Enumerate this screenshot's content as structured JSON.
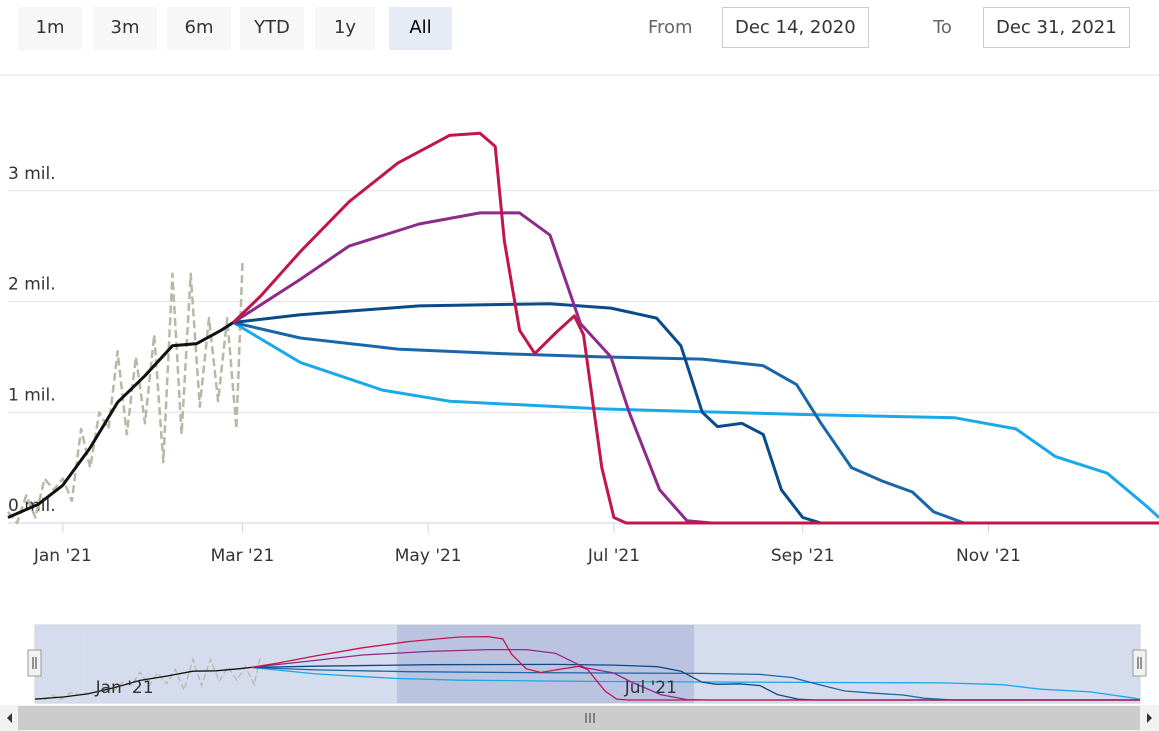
{
  "range_selector": {
    "buttons": [
      "1m",
      "3m",
      "6m",
      "YTD",
      "1y",
      "All"
    ],
    "selected": 5,
    "from_label": "From",
    "from": "Dec 14, 2020",
    "to_label": "To",
    "to": "Dec 31, 2021"
  },
  "chart_data": {
    "type": "line",
    "xlim": [
      "2020-12-14",
      "2021-12-27"
    ],
    "xticks": [
      {
        "value": "2021-01-01",
        "label": "Jan '21"
      },
      {
        "value": "2021-03-01",
        "label": "Mar '21"
      },
      {
        "value": "2021-05-01",
        "label": "May '21"
      },
      {
        "value": "2021-07-01",
        "label": "Jul '21"
      },
      {
        "value": "2021-09-01",
        "label": "Sep '21"
      },
      {
        "value": "2021-11-01",
        "label": "Nov '21"
      }
    ],
    "ylim": [
      0,
      4000000
    ],
    "yticks": [
      {
        "value": 0,
        "label": "0 mil."
      },
      {
        "value": 1000000,
        "label": "1 mil."
      },
      {
        "value": 2000000,
        "label": "2 mil."
      },
      {
        "value": 3000000,
        "label": "3 mil."
      }
    ],
    "grid": true,
    "series": [
      {
        "color": "#b9b8a4",
        "dashed": true,
        "x": [
          "2020-12-14",
          "2020-12-17",
          "2020-12-20",
          "2020-12-23",
          "2020-12-26",
          "2020-12-29",
          "2021-01-01",
          "2021-01-04",
          "2021-01-07",
          "2021-01-10",
          "2021-01-13",
          "2021-01-16",
          "2021-01-19",
          "2021-01-22",
          "2021-01-25",
          "2021-01-28",
          "2021-01-31",
          "2021-02-03",
          "2021-02-06",
          "2021-02-09",
          "2021-02-12",
          "2021-02-15",
          "2021-02-18",
          "2021-02-21",
          "2021-02-24",
          "2021-02-27",
          "2021-03-01"
        ],
        "values": [
          100000,
          0,
          250000,
          50000,
          400000,
          300000,
          400000,
          200000,
          850000,
          500000,
          1000000,
          850000,
          1550000,
          800000,
          1500000,
          900000,
          1700000,
          550000,
          2250000,
          800000,
          2250000,
          1050000,
          1850000,
          1100000,
          1850000,
          850000,
          2350000
        ]
      },
      {
        "color": "#111111",
        "x": [
          "2020-12-14",
          "2020-12-24",
          "2021-01-01",
          "2021-01-10",
          "2021-01-19",
          "2021-01-28",
          "2021-02-06",
          "2021-02-14",
          "2021-02-22",
          "2021-02-26"
        ],
        "values": [
          50000,
          170000,
          340000,
          680000,
          1090000,
          1330000,
          1600000,
          1620000,
          1740000,
          1810000
        ]
      },
      {
        "color": "#19a9e8",
        "x": [
          "2021-02-26",
          "2021-03-20",
          "2021-04-16",
          "2021-05-08",
          "2021-06-27",
          "2021-09-01",
          "2021-10-21",
          "2021-11-10",
          "2021-11-23",
          "2021-12-10",
          "2021-12-23",
          "2021-12-27"
        ],
        "values": [
          1810000,
          1450000,
          1200000,
          1100000,
          1030000,
          980000,
          950000,
          850000,
          600000,
          450000,
          150000,
          50000
        ]
      },
      {
        "color": "#1a66a8",
        "x": [
          "2021-02-26",
          "2021-03-20",
          "2021-04-21",
          "2021-05-25",
          "2021-06-27",
          "2021-07-30",
          "2021-08-19",
          "2021-08-30",
          "2021-09-07",
          "2021-09-17",
          "2021-09-27",
          "2021-10-07",
          "2021-10-14",
          "2021-10-24",
          "2021-12-27"
        ],
        "values": [
          1810000,
          1670000,
          1570000,
          1530000,
          1500000,
          1480000,
          1420000,
          1250000,
          900000,
          500000,
          380000,
          280000,
          100000,
          0,
          0
        ]
      },
      {
        "color": "#0b4a8a",
        "x": [
          "2021-02-26",
          "2021-03-20",
          "2021-04-28",
          "2021-06-10",
          "2021-06-30",
          "2021-07-15",
          "2021-07-23",
          "2021-07-30",
          "2021-08-04",
          "2021-08-12",
          "2021-08-19",
          "2021-08-25",
          "2021-09-01",
          "2021-09-07",
          "2021-12-27"
        ],
        "values": [
          1810000,
          1880000,
          1960000,
          1980000,
          1940000,
          1850000,
          1600000,
          1000000,
          870000,
          900000,
          800000,
          300000,
          50000,
          0,
          0
        ]
      },
      {
        "color": "#8e2a8b",
        "x": [
          "2021-02-26",
          "2021-03-20",
          "2021-04-05",
          "2021-04-28",
          "2021-05-18",
          "2021-05-31",
          "2021-06-10",
          "2021-06-20",
          "2021-06-30",
          "2021-07-06",
          "2021-07-16",
          "2021-07-25",
          "2021-08-02",
          "2021-12-27"
        ],
        "values": [
          1810000,
          2200000,
          2500000,
          2700000,
          2800000,
          2800000,
          2600000,
          1800000,
          1500000,
          1000000,
          300000,
          20000,
          0,
          0
        ]
      },
      {
        "color": "#c2154a",
        "x": [
          "2021-02-26",
          "2021-03-07",
          "2021-03-20",
          "2021-04-05",
          "2021-04-21",
          "2021-05-08",
          "2021-05-18",
          "2021-05-23",
          "2021-05-26",
          "2021-05-31",
          "2021-06-05",
          "2021-06-12",
          "2021-06-18",
          "2021-06-21",
          "2021-06-27",
          "2021-07-01",
          "2021-07-05",
          "2021-12-27"
        ],
        "values": [
          1810000,
          2050000,
          2450000,
          2900000,
          3250000,
          3500000,
          3520000,
          3400000,
          2550000,
          1740000,
          1530000,
          1720000,
          1870000,
          1700000,
          500000,
          50000,
          0,
          0
        ]
      }
    ]
  },
  "navigator": {
    "xticks": [
      {
        "value": "2021-01-01",
        "label": "Jan '21"
      },
      {
        "value": "2021-07-01",
        "label": "Jul '21"
      }
    ]
  }
}
